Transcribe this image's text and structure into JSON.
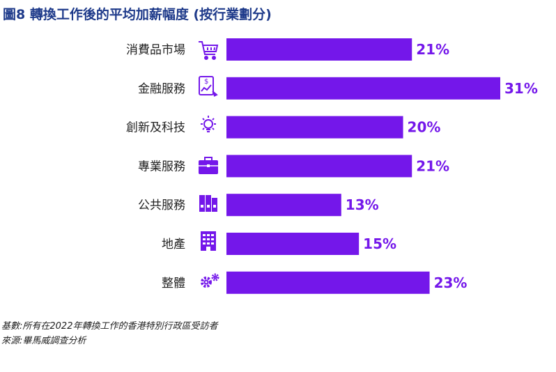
{
  "title": "圖8 轉換工作後的平均加薪幅度 (按行業劃分)",
  "colors": {
    "bar": "#7417ea",
    "title": "#1e3a8a",
    "icon": "#7417ea",
    "label": "#222222"
  },
  "chart_data": {
    "type": "bar",
    "orientation": "horizontal",
    "categories": [
      "消費品市場",
      "金融服務",
      "創新及科技",
      "專業服務",
      "公共服務",
      "地產",
      "整體"
    ],
    "icons": [
      "shopping-cart-icon",
      "finance-tablet-icon",
      "lightbulb-icon",
      "briefcase-icon",
      "files-icon",
      "building-icon",
      "gears-icon"
    ],
    "values": [
      21,
      31,
      20,
      21,
      13,
      15,
      23
    ],
    "value_labels": [
      "21%",
      "31%",
      "20%",
      "21%",
      "13%",
      "15%",
      "23%"
    ],
    "unit": "%",
    "xlim": [
      0,
      31
    ]
  },
  "notes": {
    "base": "基數:所有在2022年轉換工作的香港特別行政區受訪者",
    "source": "來源:畢馬威調查分析"
  }
}
